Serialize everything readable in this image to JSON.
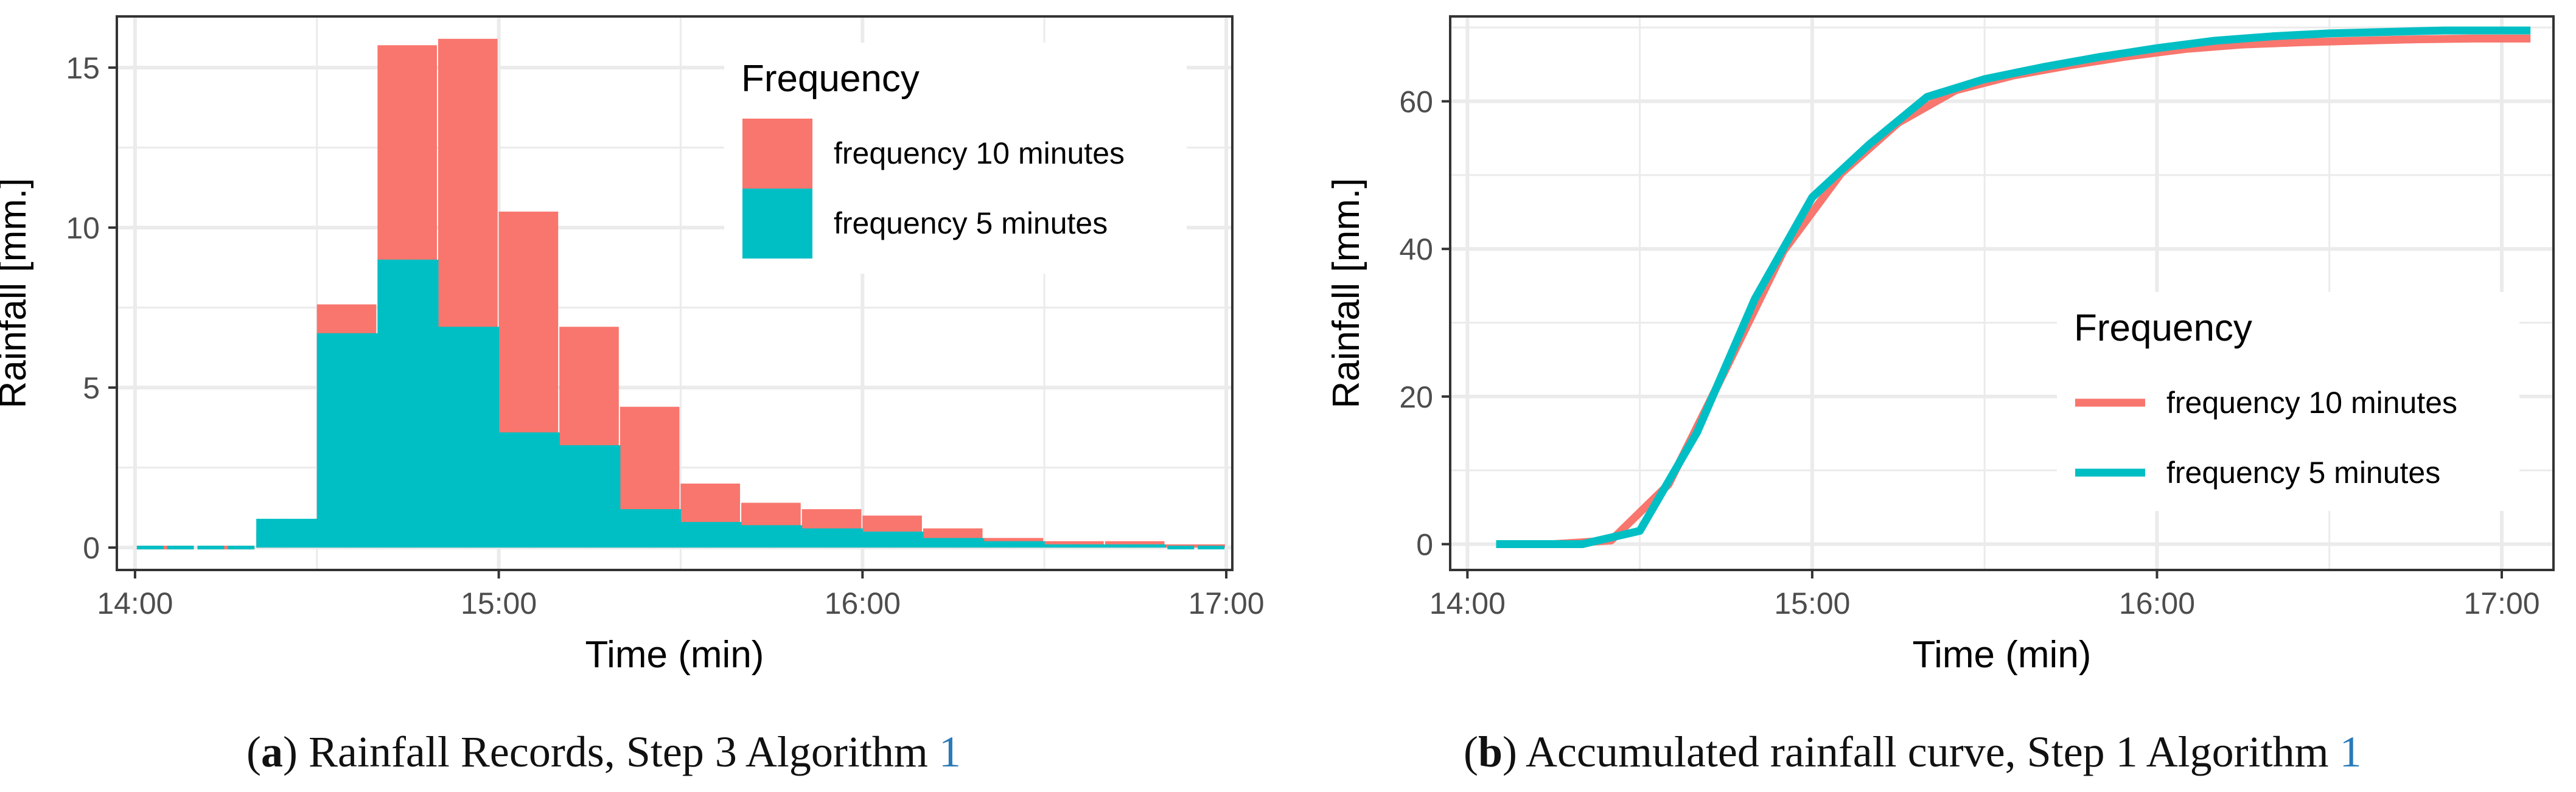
{
  "colors": {
    "ten": "#F8766D",
    "five": "#00BFC4",
    "grid": "#EBEBEB",
    "frame": "#333333",
    "axisText": "#4D4D4D"
  },
  "captions": {
    "a": {
      "letter": "a",
      "text": "Rainfall Records, Step 3 Algorithm ",
      "ref": "1"
    },
    "b": {
      "letter": "b",
      "text": "Accumulated rainfall curve, Step 1 Algorithm ",
      "ref": "1"
    }
  },
  "chart_data": [
    {
      "id": "a",
      "type": "bar",
      "xlabel": "Time (min)",
      "ylabel": "Rainfall [mm.]",
      "xlim_minutes": [
        0,
        184
      ],
      "ylim": [
        -0.7,
        16.6
      ],
      "x_ticks": [
        {
          "label": "14:00",
          "min": 3
        },
        {
          "label": "15:00",
          "min": 63
        },
        {
          "label": "16:00",
          "min": 123
        },
        {
          "label": "17:00",
          "min": 183
        }
      ],
      "y_ticks": [
        0,
        5,
        10,
        15
      ],
      "legend": {
        "title": "Frequency",
        "position": "top-right",
        "entries": [
          "frequency 10 minutes",
          "frequency 5 minutes"
        ]
      },
      "series": [
        {
          "name": "frequency 10 minutes",
          "bin_minutes": 10,
          "start_minutes": [
            3,
            13,
            23,
            33,
            43,
            53,
            63,
            73,
            83,
            93,
            103,
            113,
            123,
            133,
            143,
            153,
            163,
            173
          ],
          "values": [
            0.0,
            0.0,
            0.5,
            7.6,
            15.7,
            15.9,
            10.5,
            6.9,
            4.4,
            2.0,
            1.4,
            1.2,
            1.0,
            0.6,
            0.3,
            0.2,
            0.2,
            0.1
          ]
        },
        {
          "name": "frequency 5 minutes",
          "bin_minutes": 5,
          "start_minutes": [
            3,
            8,
            13,
            18,
            23,
            28,
            33,
            38,
            43,
            48,
            53,
            58,
            63,
            68,
            73,
            78,
            83,
            88,
            93,
            98,
            103,
            108,
            113,
            118,
            123,
            128,
            133,
            138,
            143,
            148,
            153,
            158,
            163,
            168,
            173,
            178
          ],
          "values": [
            0.0,
            0.0,
            0.0,
            0.0,
            0.9,
            0.9,
            6.7,
            6.7,
            9.0,
            9.0,
            6.9,
            6.9,
            3.6,
            3.6,
            3.2,
            3.2,
            1.2,
            1.2,
            0.8,
            0.8,
            0.7,
            0.7,
            0.6,
            0.6,
            0.5,
            0.5,
            0.3,
            0.3,
            0.2,
            0.2,
            0.1,
            0.1,
            0.1,
            0.1,
            0.0,
            0.0
          ]
        }
      ]
    },
    {
      "id": "b",
      "type": "line",
      "xlabel": "Time (min)",
      "ylabel": "Rainfall [mm.]",
      "xlim_minutes": [
        -3,
        189
      ],
      "ylim": [
        -3.5,
        71.5
      ],
      "x_ticks": [
        {
          "label": "14:00",
          "min": 0
        },
        {
          "label": "15:00",
          "min": 60
        },
        {
          "label": "16:00",
          "min": 120
        },
        {
          "label": "17:00",
          "min": 180
        }
      ],
      "y_ticks": [
        0,
        20,
        40,
        60
      ],
      "legend": {
        "title": "Frequency",
        "position": "right",
        "entries": [
          "frequency 10 minutes",
          "frequency 5 minutes"
        ]
      },
      "series": [
        {
          "name": "frequency 10 minutes",
          "x_minutes": [
            5,
            15,
            25,
            35,
            45,
            55,
            65,
            75,
            85,
            95,
            105,
            115,
            125,
            135,
            145,
            155,
            165,
            175,
            185
          ],
          "values": [
            0.0,
            0.0,
            0.5,
            8.1,
            23.8,
            39.7,
            50.2,
            57.1,
            61.5,
            63.5,
            64.9,
            66.1,
            67.1,
            67.7,
            68.0,
            68.2,
            68.4,
            68.5,
            68.5
          ]
        },
        {
          "name": "frequency 5 minutes",
          "x_minutes": [
            5,
            10,
            15,
            20,
            25,
            30,
            35,
            40,
            45,
            50,
            55,
            60,
            65,
            70,
            75,
            80,
            85,
            90,
            95,
            100,
            105,
            110,
            115,
            120,
            125,
            130,
            135,
            140,
            145,
            150,
            155,
            160,
            165,
            170,
            175,
            180,
            185
          ],
          "values": [
            0.0,
            0.0,
            0.0,
            0.0,
            0.9,
            1.8,
            8.5,
            15.2,
            24.2,
            33.2,
            40.1,
            47.0,
            50.6,
            54.2,
            57.4,
            60.6,
            61.8,
            63.0,
            63.8,
            64.6,
            65.3,
            66.0,
            66.6,
            67.2,
            67.7,
            68.2,
            68.5,
            68.8,
            69.0,
            69.2,
            69.3,
            69.4,
            69.5,
            69.6,
            69.6,
            69.6,
            69.6
          ]
        }
      ]
    }
  ]
}
